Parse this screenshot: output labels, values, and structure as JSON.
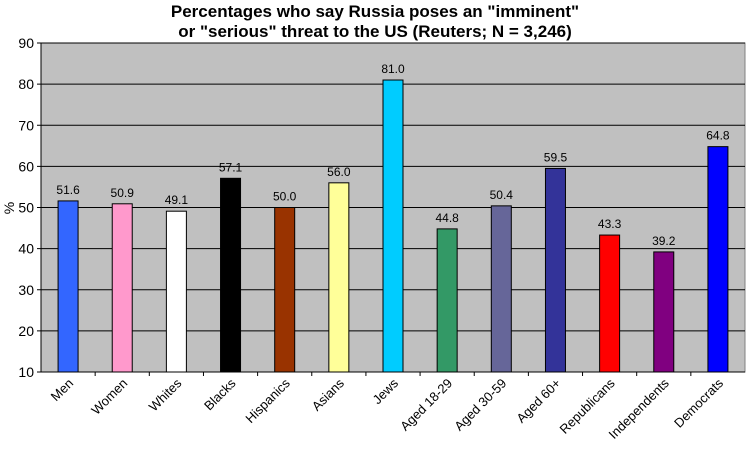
{
  "chart_data": {
    "type": "bar",
    "title": "Percentages who say Russia poses an \"imminent\" or \"serious\" threat to the US (Reuters; N = 3,246)",
    "title_lines": [
      "Percentages who say Russia poses an \"imminent\"",
      "or \"serious\" threat to the US (Reuters; N = 3,246)"
    ],
    "xlabel": "",
    "ylabel": "%",
    "ylim": [
      10,
      90
    ],
    "yticks": [
      10,
      20,
      30,
      40,
      50,
      60,
      70,
      80,
      90
    ],
    "grid": true,
    "plot_background": "#c0c0c0",
    "categories": [
      "Men",
      "Women",
      "Whites",
      "Blacks",
      "Hispanics",
      "Asians",
      "Jews",
      "Aged 18-29",
      "Aged 30-59",
      "Aged 60+",
      "Republicans",
      "Independents",
      "Democrats"
    ],
    "values": [
      51.6,
      50.9,
      49.1,
      57.1,
      50.0,
      56.0,
      81.0,
      44.8,
      50.4,
      59.5,
      43.3,
      39.2,
      64.8
    ],
    "value_labels": [
      "51.6",
      "50.9",
      "49.1",
      "57.1",
      "50.0",
      "56.0",
      "81.0",
      "44.8",
      "50.4",
      "59.5",
      "43.3",
      "39.2",
      "64.8"
    ],
    "colors": [
      "#3366ff",
      "#ff99cc",
      "#ffffff",
      "#000000",
      "#993300",
      "#ffff99",
      "#00ccff",
      "#339966",
      "#666699",
      "#333399",
      "#ff0000",
      "#800080",
      "#0000ff"
    ]
  }
}
